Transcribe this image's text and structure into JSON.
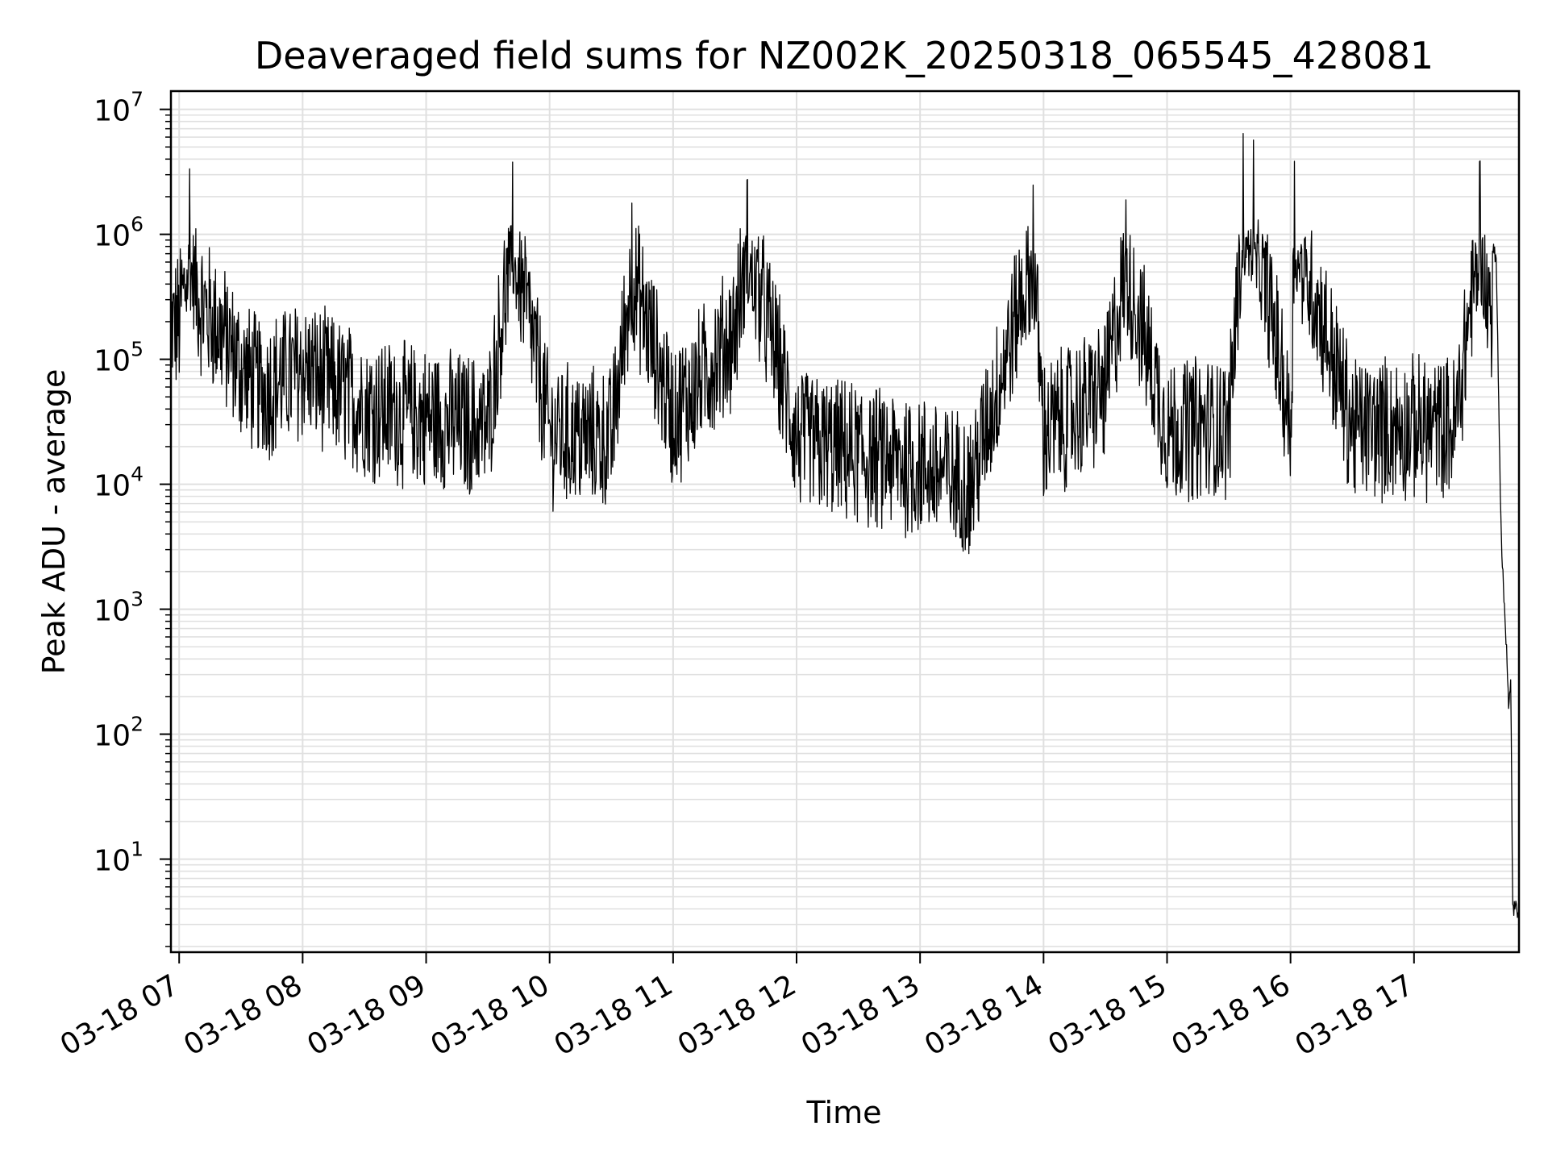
{
  "chart_data": {
    "type": "line",
    "title": "Deaveraged field sums for NZ002K_20250318_065545_428081",
    "xlabel": "Time",
    "ylabel": "Peak ADU - average",
    "yscale": "log",
    "ylim": [
      1.8,
      14000000
    ],
    "xlim": [
      "2025-03-18T06:56",
      "2025-03-18T17:51"
    ],
    "grid": true,
    "line_color": "#000000",
    "grid_color": "#e0e0e0",
    "x_tick_labels": [
      "03-18 07",
      "03-18 08",
      "03-18 09",
      "03-18 10",
      "03-18 11",
      "03-18 12",
      "03-18 13",
      "03-18 14",
      "03-18 15",
      "03-18 16",
      "03-18 17"
    ],
    "y_tick_labels": [
      {
        "base": "10",
        "exp": "1"
      },
      {
        "base": "10",
        "exp": "2"
      },
      {
        "base": "10",
        "exp": "3"
      },
      {
        "base": "10",
        "exp": "4"
      },
      {
        "base": "10",
        "exp": "5"
      },
      {
        "base": "10",
        "exp": "6"
      },
      {
        "base": "10",
        "exp": "7"
      }
    ],
    "series": [
      {
        "points": [
          [
            "2025-03-18T06:56",
            600000
          ],
          [
            "2025-03-18T07:00",
            700000
          ],
          [
            "2025-03-18T07:05",
            3400000
          ],
          [
            "2025-03-18T07:10",
            1000000
          ],
          [
            "2025-03-18T07:20",
            600000
          ],
          [
            "2025-03-18T07:30",
            300000
          ],
          [
            "2025-03-18T07:40",
            200000
          ],
          [
            "2025-03-18T08:00",
            300000
          ],
          [
            "2025-03-18T08:30",
            150000
          ],
          [
            "2025-03-18T09:00",
            120000
          ],
          [
            "2025-03-18T09:30",
            100000
          ],
          [
            "2025-03-18T09:42",
            3800000
          ],
          [
            "2025-03-18T10:00",
            90000
          ],
          [
            "2025-03-18T10:30",
            80000
          ],
          [
            "2025-03-18T10:40",
            1800000
          ],
          [
            "2025-03-18T11:00",
            120000
          ],
          [
            "2025-03-18T11:30",
            600000
          ],
          [
            "2025-03-18T11:36",
            2800000
          ],
          [
            "2025-03-18T11:50",
            400000
          ],
          [
            "2025-03-18T12:00",
            80000
          ],
          [
            "2025-03-18T12:30",
            60000
          ],
          [
            "2025-03-18T13:00",
            50000
          ],
          [
            "2025-03-18T13:25",
            35000
          ],
          [
            "2025-03-18T13:55",
            2500000
          ],
          [
            "2025-03-18T14:00",
            90000
          ],
          [
            "2025-03-18T14:30",
            200000
          ],
          [
            "2025-03-18T14:40",
            1900000
          ],
          [
            "2025-03-18T15:00",
            100000
          ],
          [
            "2025-03-18T15:30",
            100000
          ],
          [
            "2025-03-18T15:37",
            6500000
          ],
          [
            "2025-03-18T15:42",
            5700000
          ],
          [
            "2025-03-18T16:00",
            100000
          ],
          [
            "2025-03-18T16:02",
            4500000
          ],
          [
            "2025-03-18T16:30",
            100000
          ],
          [
            "2025-03-18T17:00",
            100000
          ],
          [
            "2025-03-18T17:20",
            100000
          ],
          [
            "2025-03-18T17:32",
            4000000
          ],
          [
            "2025-03-18T17:36",
            1100000
          ],
          [
            "2025-03-18T17:40",
            600000
          ],
          [
            "2025-03-18T17:42",
            8000
          ],
          [
            "2025-03-18T17:43",
            2000
          ],
          [
            "2025-03-18T17:45",
            500
          ],
          [
            "2025-03-18T17:46",
            150
          ],
          [
            "2025-03-18T17:47",
            250
          ],
          [
            "2025-03-18T17:48",
            4
          ],
          [
            "2025-03-18T17:50",
            4
          ]
        ]
      }
    ]
  }
}
